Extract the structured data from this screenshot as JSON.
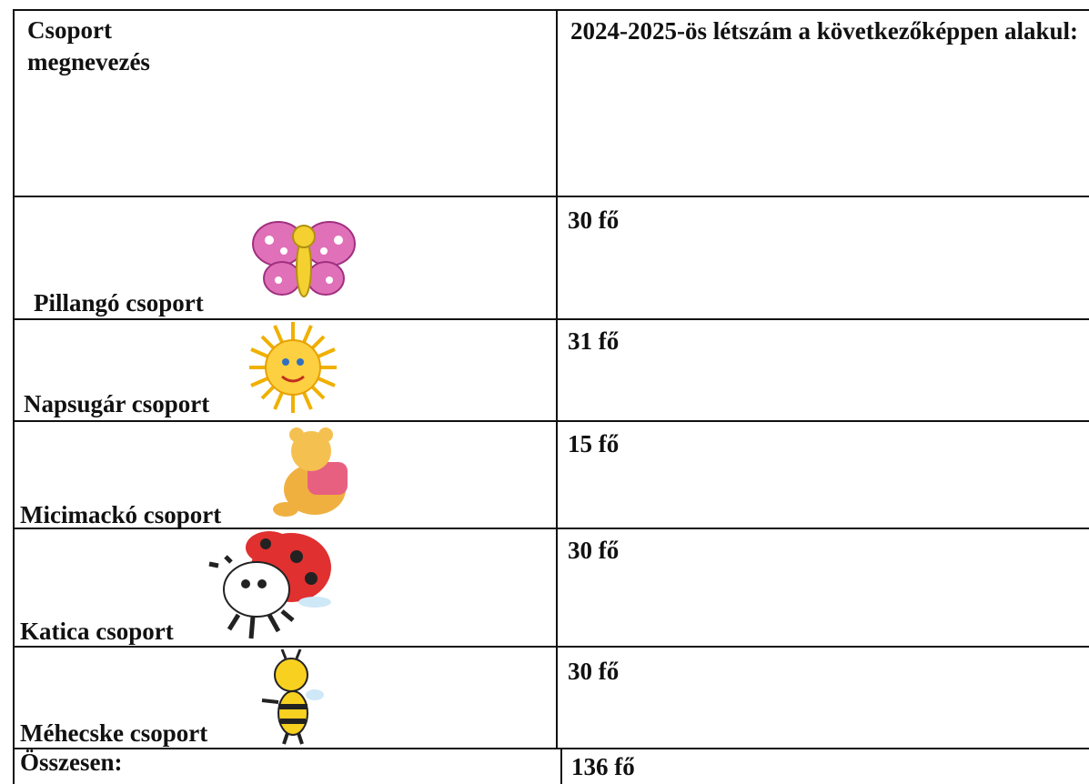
{
  "table": {
    "header": {
      "name_lines": [
        "Csoport",
        "megnevezés"
      ],
      "count": "2024-2025-ös létszám a következőképpen alakul:"
    },
    "rows": [
      {
        "name": "Pillangó csoport",
        "count": "30 fő"
      },
      {
        "name": "Napsugár csoport",
        "count": "31 fő"
      },
      {
        "name": "Micimackó csoport",
        "count": "15 fő"
      },
      {
        "name": "Katica csoport",
        "count": "30 fő"
      },
      {
        "name": "Méhecske csoport",
        "count": "30 fő"
      }
    ],
    "total": {
      "name": "Összesen:",
      "count": "136 fő"
    }
  }
}
